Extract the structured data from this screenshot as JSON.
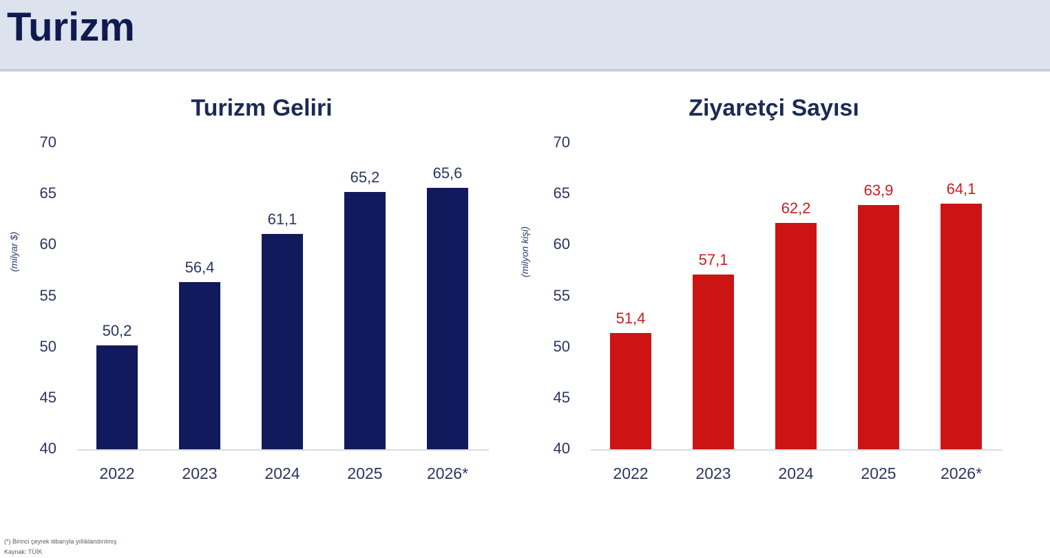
{
  "header": {
    "title": "Turizm"
  },
  "colors": {
    "header_bg": "#dce3ee",
    "title_text": "#0f1a4f",
    "bar_left": "#111a5c",
    "bar_right": "#cc1414",
    "label_left": "#2a3560",
    "label_right": "#cc1c1c"
  },
  "charts": [
    {
      "title": "Turizm Geliri",
      "ylabel": "(milyar $)",
      "yticks": [
        "70",
        "65",
        "60",
        "55",
        "50",
        "45",
        "40"
      ],
      "categories": [
        "2022",
        "2023",
        "2024",
        "2025",
        "2026*"
      ],
      "labels": [
        "50,2",
        "56,4",
        "61,1",
        "65,2",
        "65,6"
      ]
    },
    {
      "title": "Ziyaretçi Sayısı",
      "ylabel": "(milyon kişi)",
      "yticks": [
        "70",
        "65",
        "60",
        "55",
        "50",
        "45",
        "40"
      ],
      "categories": [
        "2022",
        "2023",
        "2024",
        "2025",
        "2026*"
      ],
      "labels": [
        "51,4",
        "57,1",
        "62,2",
        "63,9",
        "64,1"
      ]
    }
  ],
  "footnotes": {
    "note": "(*) Birinci çeyrek itibarıyla yıllıklandırılmış",
    "source": "Kaynak: TÜİK"
  },
  "chart_data": [
    {
      "type": "bar",
      "title": "Turizm Geliri",
      "xlabel": "",
      "ylabel": "(milyar $)",
      "categories": [
        "2022",
        "2023",
        "2024",
        "2025",
        "2026*"
      ],
      "values": [
        50.2,
        56.4,
        61.1,
        65.2,
        65.6
      ],
      "ylim": [
        40,
        70
      ],
      "yticks": [
        40,
        45,
        50,
        55,
        60,
        65,
        70
      ],
      "grid": false,
      "legend": null,
      "color": "#111a5c"
    },
    {
      "type": "bar",
      "title": "Ziyaretçi Sayısı",
      "xlabel": "",
      "ylabel": "(milyon kişi)",
      "categories": [
        "2022",
        "2023",
        "2024",
        "2025",
        "2026*"
      ],
      "values": [
        51.4,
        57.1,
        62.2,
        63.9,
        64.1
      ],
      "ylim": [
        40,
        70
      ],
      "yticks": [
        40,
        45,
        50,
        55,
        60,
        65,
        70
      ],
      "grid": false,
      "legend": null,
      "color": "#cc1414"
    }
  ]
}
